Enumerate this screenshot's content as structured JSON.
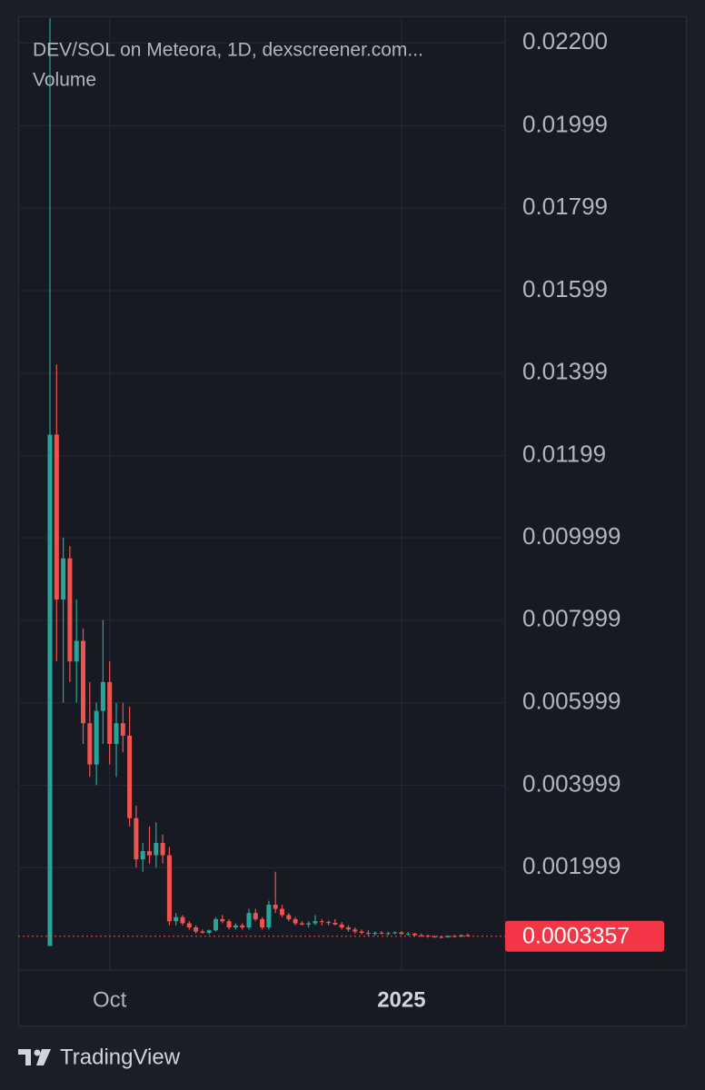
{
  "chart_data": {
    "type": "candlestick",
    "title": "DEV/SOL on Meteora, 1D, dexscreener.com...",
    "subtitle": "Volume",
    "categories": [
      null,
      null,
      null,
      null,
      null,
      null,
      null,
      null,
      null,
      "Oct",
      null,
      null,
      null,
      null,
      null,
      null,
      null,
      null,
      null,
      null,
      null,
      null,
      null,
      null,
      null,
      null,
      null,
      null,
      null,
      null,
      null,
      null,
      null,
      null,
      null,
      null,
      null,
      null,
      null,
      null,
      null,
      null,
      null,
      null,
      null,
      null,
      null,
      null,
      null,
      null,
      null,
      null,
      null,
      "2025",
      null,
      null,
      null,
      null,
      null,
      null,
      null,
      null,
      null,
      null
    ],
    "open": [
      0.0001,
      0.0125,
      0.0085,
      0.0095,
      0.007,
      0.0075,
      0.0055,
      0.0045,
      0.0058,
      0.0065,
      0.005,
      0.0055,
      0.0052,
      0.0032,
      0.0022,
      0.0024,
      0.0023,
      0.0026,
      0.0023,
      0.0007,
      0.0008,
      0.00065,
      0.00055,
      0.00045,
      0.00042,
      0.00048,
      0.00075,
      0.0007,
      0.00055,
      0.0006,
      0.00055,
      0.0009,
      0.00075,
      0.00055,
      0.0011,
      0.001,
      0.00085,
      0.00075,
      0.00065,
      0.00062,
      0.00065,
      0.0007,
      0.00068,
      0.00066,
      0.00062,
      0.00055,
      0.0005,
      0.00045,
      0.00042,
      0.0004,
      0.00042,
      0.0004,
      0.00041,
      0.00043,
      0.00039,
      0.0004,
      0.00036,
      0.00035,
      0.00033,
      0.00032,
      0.00031,
      0.00034,
      0.00033,
      0.00036
    ],
    "high": [
      0.0226,
      0.0142,
      0.01,
      0.0098,
      0.0085,
      0.0078,
      0.0065,
      0.006,
      0.008,
      0.007,
      0.006,
      0.006,
      0.0059,
      0.0035,
      0.0026,
      0.003,
      0.0031,
      0.0028,
      0.0025,
      0.0009,
      0.00085,
      0.0007,
      0.0006,
      0.0005,
      0.0005,
      0.0008,
      0.00085,
      0.00075,
      0.00065,
      0.00065,
      0.001,
      0.001,
      0.0008,
      0.0012,
      0.0019,
      0.0011,
      0.0009,
      0.0008,
      0.0007,
      0.0007,
      0.00085,
      0.00075,
      0.00072,
      0.00075,
      0.00068,
      0.0006,
      0.00055,
      0.0005,
      0.00048,
      0.00045,
      0.00046,
      0.00045,
      0.00045,
      0.00046,
      0.00044,
      0.00042,
      0.0004,
      0.00038,
      0.00036,
      0.00035,
      0.00036,
      0.00037,
      0.00038,
      0.0004
    ],
    "low": [
      0.0001,
      0.007,
      0.006,
      0.0065,
      0.006,
      0.005,
      0.0042,
      0.004,
      0.005,
      0.0045,
      0.0042,
      0.0048,
      0.003,
      0.002,
      0.0019,
      0.0021,
      0.002,
      0.0021,
      0.0006,
      0.0006,
      0.0006,
      0.0005,
      0.0004,
      0.0004,
      0.00038,
      0.00045,
      0.00065,
      0.0005,
      0.0005,
      0.0005,
      0.0005,
      0.0007,
      0.0005,
      0.0005,
      0.0009,
      0.0008,
      0.0007,
      0.0006,
      0.0006,
      0.00055,
      0.0006,
      0.0006,
      0.0006,
      0.0006,
      0.0005,
      0.00045,
      0.0004,
      0.00038,
      0.00035,
      0.00035,
      0.00038,
      0.00036,
      0.00038,
      0.00037,
      0.00035,
      0.00034,
      0.00032,
      0.0003,
      0.0003,
      0.00029,
      0.0003,
      0.00031,
      0.00031,
      0.00033
    ],
    "close": [
      0.0125,
      0.0085,
      0.0095,
      0.007,
      0.0075,
      0.0055,
      0.0045,
      0.0058,
      0.0065,
      0.005,
      0.0055,
      0.0052,
      0.0032,
      0.0022,
      0.0024,
      0.0023,
      0.0026,
      0.0023,
      0.0007,
      0.0008,
      0.00065,
      0.00055,
      0.00045,
      0.00042,
      0.00048,
      0.00075,
      0.0007,
      0.00055,
      0.0006,
      0.00055,
      0.0009,
      0.00075,
      0.00055,
      0.0011,
      0.001,
      0.00085,
      0.00075,
      0.00065,
      0.00062,
      0.00065,
      0.0007,
      0.00068,
      0.00066,
      0.00062,
      0.00055,
      0.0005,
      0.00045,
      0.00042,
      0.0004,
      0.00042,
      0.0004,
      0.00041,
      0.00043,
      0.00039,
      0.0004,
      0.00036,
      0.00035,
      0.00033,
      0.00032,
      0.00031,
      0.00034,
      0.00033,
      0.00036,
      0.0003357
    ],
    "up_color": "#26a69a",
    "down_color": "#ef5350",
    "last_price": 0.0003357,
    "ylim": [
      -0.000485,
      0.022643
    ],
    "yticks": [
      {
        "value": 0.022,
        "label": "0.02200"
      },
      0.01999,
      0.01799,
      0.01599,
      0.01399,
      0.01199,
      0.009999,
      0.007999,
      0.005999,
      0.003999,
      0.001999
    ],
    "grid": true
  },
  "branding": "TradingView"
}
